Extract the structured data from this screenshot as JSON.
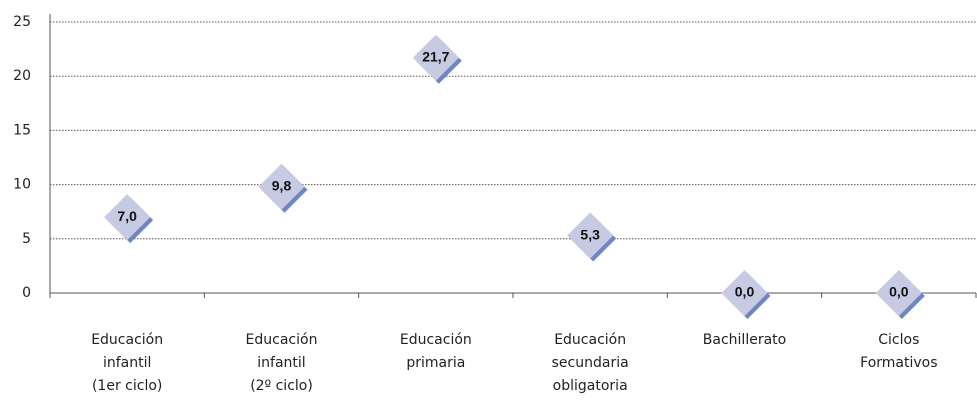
{
  "chart_data": {
    "type": "scatter",
    "marker": "diamond",
    "categories": [
      [
        "Educación",
        "infantil",
        "(1er ciclo)"
      ],
      [
        "Educación",
        "infantil",
        "(2º ciclo)"
      ],
      [
        "Educación",
        "primaria"
      ],
      [
        "Educación",
        "secundaria",
        "obligatoria"
      ],
      [
        "Bachillerato"
      ],
      [
        "Ciclos",
        "Formativos"
      ]
    ],
    "values": [
      7.0,
      9.8,
      21.7,
      5.3,
      0.0,
      0.0
    ],
    "value_labels": [
      "7,0",
      "9,8",
      "21,7",
      "5,3",
      "0,0",
      "0,0"
    ],
    "color": "#c6cae2",
    "shadow_color": "#6f86c2",
    "ylim": [
      0,
      25
    ],
    "yticks": [
      0,
      5,
      10,
      15,
      20,
      25
    ],
    "grid": true
  }
}
